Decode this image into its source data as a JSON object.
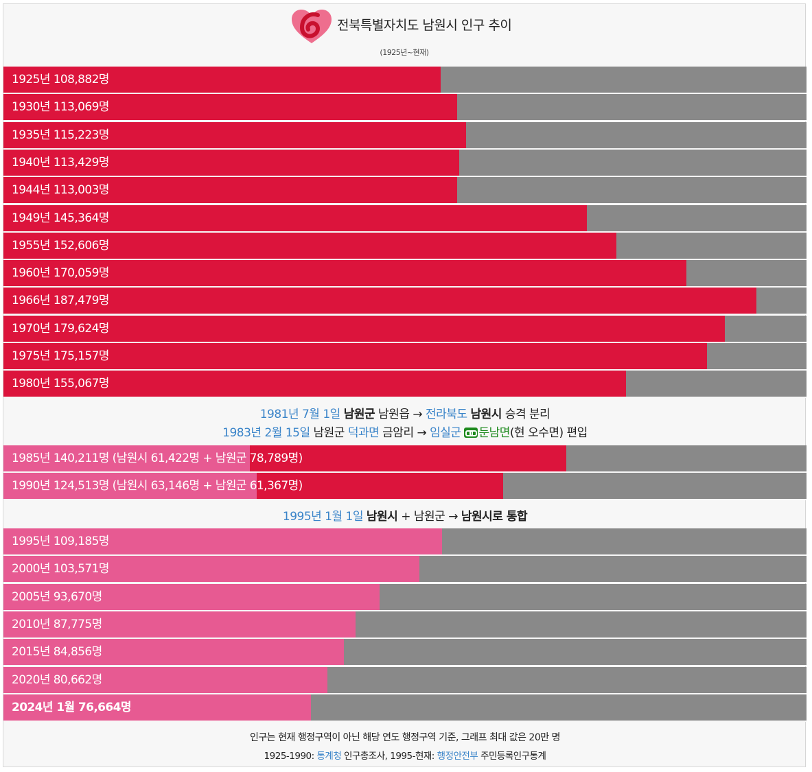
{
  "header": {
    "title": "전북특별자치도 남원시 인구 추이",
    "subtitle": "(1925년~현재)"
  },
  "colors": {
    "red": "#dc143c",
    "pink": "#e75a92",
    "gray": "#898989",
    "link": "#3a84c9",
    "green": "#1e8a1e"
  },
  "chart_data": {
    "type": "bar",
    "orientation": "horizontal",
    "xlim": [
      0,
      200000
    ],
    "groups": [
      {
        "bars": [
          {
            "label": "1925년 108,882명",
            "value": 108882,
            "color": "red"
          },
          {
            "label": "1930년 113,069명",
            "value": 113069,
            "color": "red"
          },
          {
            "label": "1935년 115,223명",
            "value": 115223,
            "color": "red"
          },
          {
            "label": "1940년 113,429명",
            "value": 113429,
            "color": "red"
          },
          {
            "label": "1944년 113,003명",
            "value": 113003,
            "color": "red"
          },
          {
            "label": "1949년 145,364명",
            "value": 145364,
            "color": "red"
          },
          {
            "label": "1955년 152,606명",
            "value": 152606,
            "color": "red"
          },
          {
            "label": "1960년 170,059명",
            "value": 170059,
            "color": "red"
          },
          {
            "label": "1966년 187,479명",
            "value": 187479,
            "color": "red"
          },
          {
            "label": "1970년 179,624명",
            "value": 179624,
            "color": "red"
          },
          {
            "label": "1975년 175,157명",
            "value": 175157,
            "color": "red"
          },
          {
            "label": "1980년 155,067명",
            "value": 155067,
            "color": "red"
          }
        ]
      },
      {
        "bars": [
          {
            "label": "1985년 140,211명 (남원시 61,422명 + 남원군 78,789명)",
            "value": 140211,
            "pink_part": 61422,
            "red_part": 78789
          },
          {
            "label": "1990년 124,513명 (남원시 63,146명 + 남원군 61,367명)",
            "value": 124513,
            "pink_part": 63146,
            "red_part": 61367
          }
        ]
      },
      {
        "bars": [
          {
            "label": "1995년 109,185명",
            "value": 109185,
            "color": "pink"
          },
          {
            "label": "2000년 103,571명",
            "value": 103571,
            "color": "pink"
          },
          {
            "label": "2005년 93,670명",
            "value": 93670,
            "color": "pink"
          },
          {
            "label": "2010년 87,775명",
            "value": 87775,
            "color": "pink"
          },
          {
            "label": "2015년 84,856명",
            "value": 84856,
            "color": "pink"
          },
          {
            "label": "2020년 80,662명",
            "value": 80662,
            "color": "pink"
          },
          {
            "label": "2024년 1월 76,664명",
            "value": 76664,
            "color": "pink",
            "bold": true
          }
        ]
      }
    ]
  },
  "notes": {
    "n1981": {
      "date": "1981년 7월 1일",
      "a": "남원군",
      "b": "남원읍 →",
      "c": "전라북도",
      "d": "남원시",
      "e": "승격 분리"
    },
    "n1983": {
      "date": "1983년 2월 15일",
      "a": "남원군",
      "b": "덕과면",
      "c": "금암리 →",
      "d": "임실군",
      "e": "둔남면",
      "f": "(현 오수면) 편입"
    },
    "n1995": {
      "date": "1995년 1월 1일",
      "a": "남원시",
      "b": "+ 남원군 →",
      "c": "남원시로 통합"
    }
  },
  "footer": {
    "line1": "인구는 현재 행정구역이 아닌 해당 연도 행정구역 기준, 그래프 최대 값은 20만 명",
    "line2_a": "1925-1990:",
    "line2_b": "통계청",
    "line2_c": "인구총조사, 1995-현재:",
    "line2_d": "행정안전부",
    "line2_e": "주민등록인구통계"
  }
}
